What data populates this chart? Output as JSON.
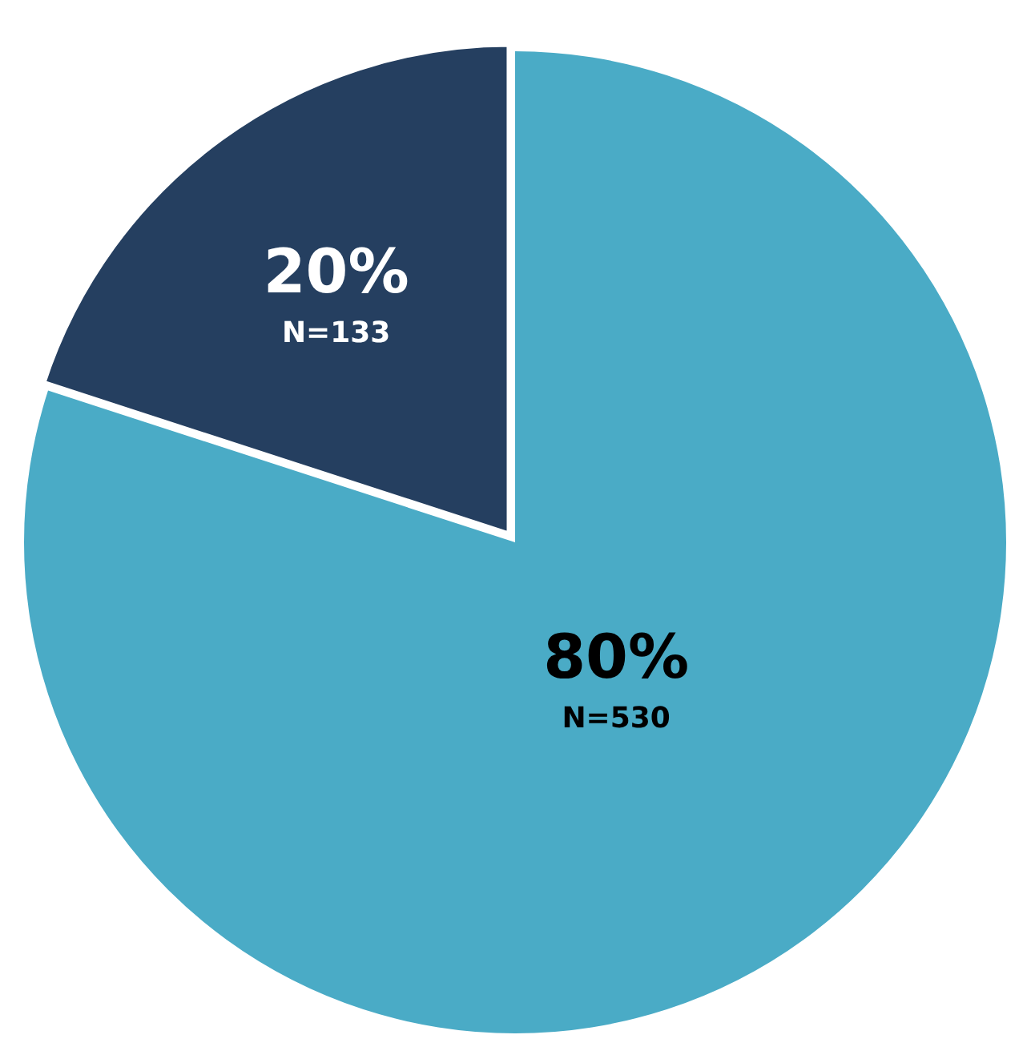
{
  "chart_data": {
    "type": "pie",
    "categories": [
      null,
      null
    ],
    "values": [
      80,
      20
    ],
    "colors": [
      "#4aabc6",
      "#253f60"
    ],
    "value_labels": [
      "80%\nN=530",
      "20%\nN=133"
    ],
    "legend": false
  }
}
